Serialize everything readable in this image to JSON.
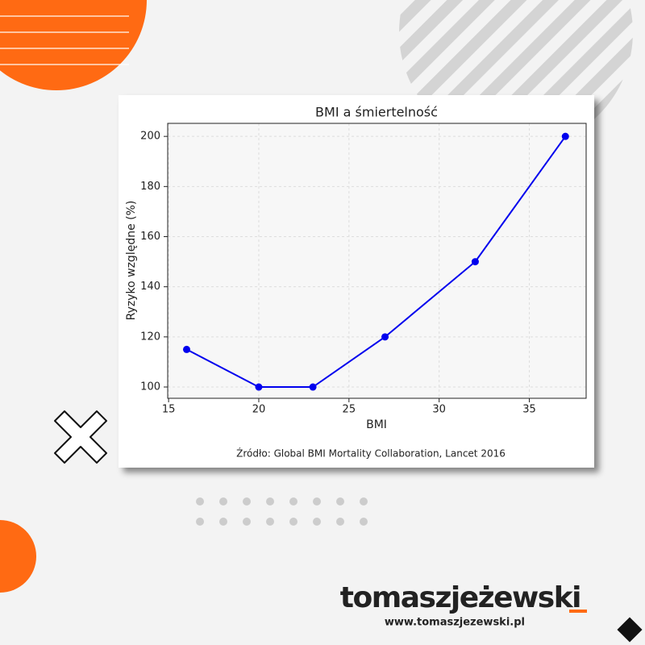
{
  "chart_data": {
    "type": "line",
    "title": "BMI a śmiertelność",
    "x_label": "BMI",
    "y_label": "Ryzyko względne (%)",
    "source": "Źródło: Global BMI Mortality Collaboration, Lancet 2016",
    "x": [
      16,
      20,
      23,
      27,
      32,
      37
    ],
    "series": [
      {
        "name": "Ryzyko względne",
        "color": "#0000ee",
        "values": [
          115,
          100,
          100,
          120,
          150,
          200
        ]
      }
    ],
    "xlim": [
      14.95,
      38.15
    ],
    "ylim": [
      95.5,
      205.2
    ],
    "xticks": [
      15,
      20,
      25,
      30,
      35
    ],
    "yticks": [
      100,
      120,
      140,
      160,
      180,
      200
    ],
    "grid": true
  },
  "branding": {
    "name": "tomaszjeżewski",
    "url": "www.tomaszjezewski.pl"
  }
}
